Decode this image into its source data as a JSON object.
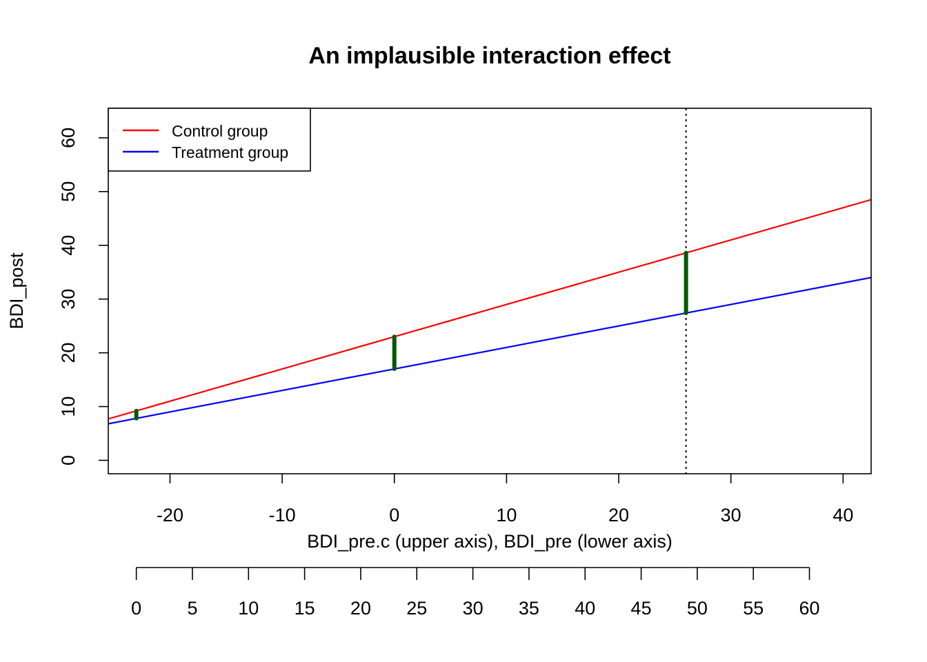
{
  "chart_data": {
    "type": "line",
    "title": "An implausible interaction effect",
    "xlabel": "BDI_pre.c (upper axis), BDI_pre (lower axis)",
    "ylabel": "BDI_post",
    "xlim": [
      -25.5,
      42.5
    ],
    "ylim": [
      -2.5,
      65.5
    ],
    "x_ticks": [
      -20,
      -10,
      0,
      10,
      20,
      30,
      40
    ],
    "x_tick_labels": [
      "-20",
      "-10",
      "0",
      "10",
      "20",
      "30",
      "40"
    ],
    "y_ticks": [
      0,
      10,
      20,
      30,
      40,
      50,
      60
    ],
    "y_tick_labels": [
      "0",
      "10",
      "20",
      "30",
      "40",
      "50",
      "60"
    ],
    "lower_axis": {
      "offset": 23,
      "ticks": [
        0,
        5,
        10,
        15,
        20,
        25,
        30,
        35,
        40,
        45,
        50,
        55,
        60
      ],
      "tick_labels": [
        "0",
        "5",
        "10",
        "15",
        "20",
        "25",
        "30",
        "35",
        "40",
        "45",
        "50",
        "55",
        "60"
      ]
    },
    "grid": false,
    "legend_position": "top-left",
    "series": [
      {
        "name": "Control group",
        "color": "#ff0000",
        "x": [
          -25.5,
          42.5
        ],
        "y": [
          7.7,
          48.5
        ]
      },
      {
        "name": "Treatment group",
        "color": "#0000ff",
        "x": [
          -25.5,
          42.5
        ],
        "y": [
          6.8,
          34.0
        ]
      }
    ],
    "vertical_reference_line": {
      "x": 26,
      "style": "dotted",
      "color": "#000000"
    },
    "difference_segments": {
      "color": "#005a00",
      "items": [
        {
          "x": -23,
          "y_low": 7.8,
          "y_high": 9.2
        },
        {
          "x": 0,
          "y_low": 17.0,
          "y_high": 23.0
        },
        {
          "x": 26,
          "y_low": 27.4,
          "y_high": 38.6
        }
      ]
    }
  }
}
